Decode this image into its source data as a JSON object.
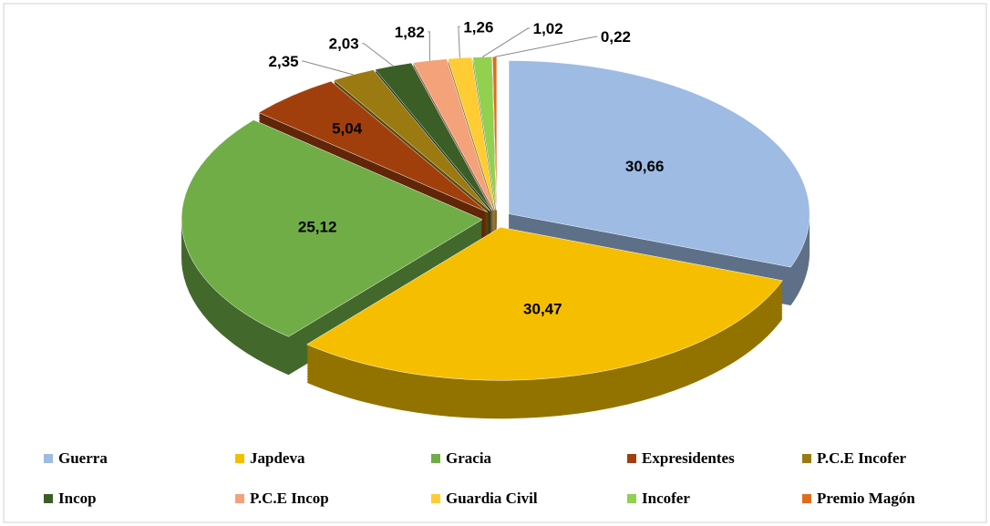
{
  "chart_data": {
    "type": "pie",
    "categories": [
      "Guerra",
      "Japdeva",
      "Gracia",
      "Expresidentes",
      "P.C.E Incofer",
      "Incop",
      "P.C.E Incop",
      "Guardia Civil",
      "Incofer",
      "Premio Magón"
    ],
    "values": [
      30.66,
      30.47,
      25.12,
      5.04,
      2.35,
      2.03,
      1.82,
      1.26,
      1.02,
      0.22
    ],
    "value_labels": [
      "30,66",
      "30,47",
      "25,12",
      "5,04",
      "2,35",
      "2,03",
      "1,82",
      "1,26",
      "1,02",
      "0,22"
    ],
    "colors": [
      "#9dbbe3",
      "#f5bf00",
      "#70ad47",
      "#a13f0c",
      "#9b7a12",
      "#3b5e27",
      "#f4a27a",
      "#ffcc33",
      "#92d050",
      "#e06c1e"
    ],
    "legend": "bottom"
  }
}
